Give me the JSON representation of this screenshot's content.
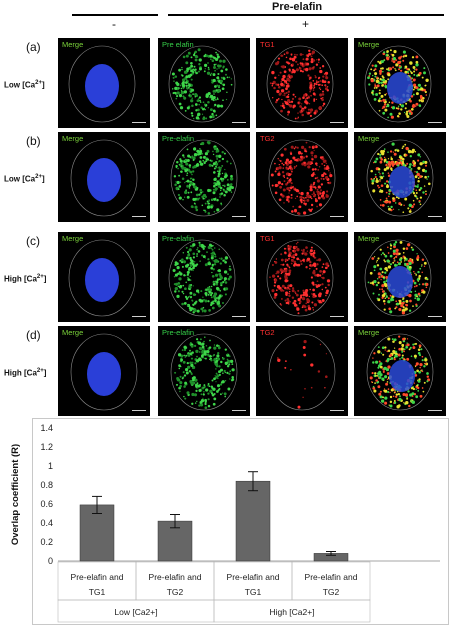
{
  "figure": {
    "header_title": "Pre-elafin",
    "minus_sign": "-",
    "plus_sign": "+"
  },
  "rows": [
    {
      "letter": "(a)",
      "condition_main": "Low [Ca",
      "condition_sup": "2+",
      "condition_end": "]",
      "panels": [
        {
          "label": "Merge",
          "color": "#7ad23a",
          "kind": "nucleus"
        },
        {
          "label": "Pre elafin",
          "color": "#37d24a",
          "kind": "green"
        },
        {
          "label": "TG1",
          "color": "#ff3030",
          "kind": "red"
        },
        {
          "label": "Merge",
          "color": "#7ad23a",
          "kind": "merge"
        }
      ]
    },
    {
      "letter": "(b)",
      "condition_main": "Low [Ca",
      "condition_sup": "2+",
      "condition_end": "]",
      "panels": [
        {
          "label": "Merge",
          "color": "#7ad23a",
          "kind": "nucleus"
        },
        {
          "label": "Pre-elafin",
          "color": "#37d24a",
          "kind": "green"
        },
        {
          "label": "TG2",
          "color": "#ff3030",
          "kind": "red"
        },
        {
          "label": "Merge",
          "color": "#7ad23a",
          "kind": "merge"
        }
      ]
    },
    {
      "letter": "(c)",
      "condition_main": "High [Ca",
      "condition_sup": "2+",
      "condition_end": "]",
      "panels": [
        {
          "label": "Merge",
          "color": "#7ad23a",
          "kind": "nucleus"
        },
        {
          "label": "Pre-elafin",
          "color": "#37d24a",
          "kind": "green"
        },
        {
          "label": "TG1",
          "color": "#ff3030",
          "kind": "red"
        },
        {
          "label": "Merge",
          "color": "#7ad23a",
          "kind": "merge"
        }
      ]
    },
    {
      "letter": "(d)",
      "condition_main": "High [Ca",
      "condition_sup": "2+",
      "condition_end": "]",
      "panels": [
        {
          "label": "Merge",
          "color": "#7ad23a",
          "kind": "nucleus"
        },
        {
          "label": "Pre-elafin",
          "color": "#37d24a",
          "kind": "green"
        },
        {
          "label": "TG2",
          "color": "#ff3030",
          "kind": "red"
        },
        {
          "label": "Merge",
          "color": "#7ad23a",
          "kind": "merge"
        }
      ]
    }
  ],
  "chart_data": {
    "type": "bar",
    "ylabel": "Overlap coefficient (R)",
    "ylim": [
      0,
      1.4
    ],
    "yticks": [
      "1.4",
      "1.2",
      "1",
      "0.8",
      "0.6",
      "0.4",
      "0.2",
      "0"
    ],
    "categories": [
      {
        "line1": "Pre-elafin and",
        "line2": "TG1"
      },
      {
        "line1": "Pre-elafin and",
        "line2": "TG2"
      },
      {
        "line1": "Pre-elafin and",
        "line2": "TG1"
      },
      {
        "line1": "Pre-elafin and",
        "line2": "TG2"
      }
    ],
    "groups": [
      {
        "label": "Low [Ca2+]"
      },
      {
        "label": "High [Ca2+]"
      }
    ],
    "values": [
      0.59,
      0.42,
      0.84,
      0.08
    ],
    "errors": [
      0.09,
      0.07,
      0.1,
      0.02
    ],
    "bar_color": "#666666",
    "grid": false
  }
}
